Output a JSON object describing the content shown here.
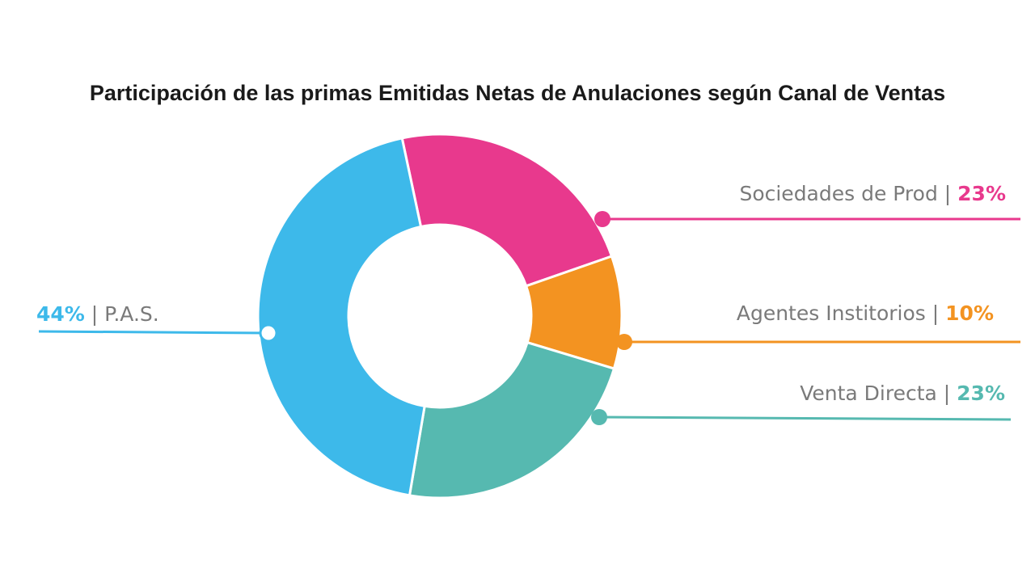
{
  "chart_data": {
    "type": "pie",
    "title": "Participación de las primas Emitidas Netas de Anulaciones según Canal de Ventas",
    "donut": true,
    "separator": "|",
    "slices": [
      {
        "label": "Sociedades de Prod",
        "value": 23,
        "display": "23%",
        "color": "#e8398d"
      },
      {
        "label": "Agentes Institorios",
        "value": 10,
        "display": "10%",
        "color": "#f39321"
      },
      {
        "label": "Venta Directa",
        "value": 23,
        "display": "23%",
        "color": "#56b9b0"
      },
      {
        "label": "P.A.S.",
        "value": 44,
        "display": "44%",
        "color": "#3db9ea"
      }
    ]
  }
}
